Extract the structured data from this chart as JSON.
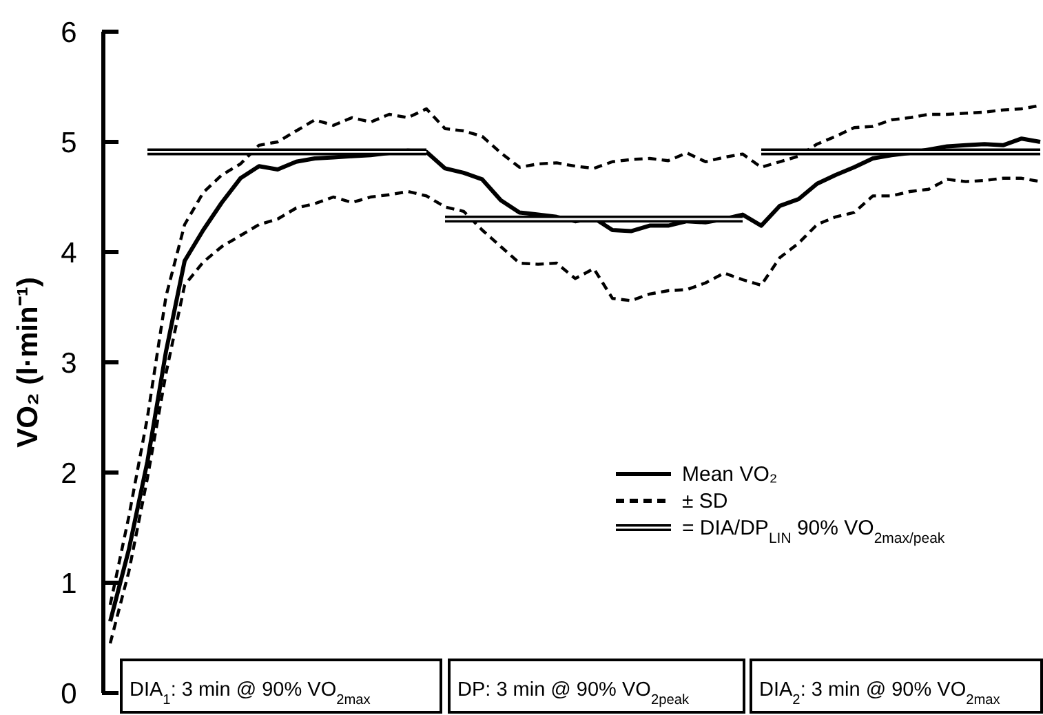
{
  "chart_data": {
    "type": "line",
    "ylabel": "VO₂ (l·min⁻¹)",
    "ylim": [
      0,
      6
    ],
    "yticks": [
      0,
      1,
      2,
      3,
      4,
      5,
      6
    ],
    "tick_labels": "y",
    "grid": false,
    "legend": "bottom right",
    "marker": "none",
    "categories": [
      null,
      null,
      null,
      null,
      null,
      null,
      null,
      null,
      null,
      null,
      null,
      null,
      null,
      null,
      null,
      null,
      null,
      null,
      null,
      null,
      null,
      null,
      null,
      null,
      null,
      null,
      null,
      null,
      null,
      null,
      null,
      null,
      null,
      null,
      null,
      null,
      null,
      null,
      null,
      null,
      null,
      null,
      null,
      null,
      null,
      null,
      null,
      null,
      null,
      null,
      null
    ],
    "annotations": [
      "DIA$_{1}$: 3 min @ 90% VO$_{2max}$",
      "DP: 3 min @ 90% VO$_{2peak}$",
      "DIA$_{2}$: 3 min @ 90% VO$_{2max}$"
    ],
    "series": [
      {
        "name": "Mean VO₂",
        "color": "#000000",
        "line_style": "solid",
        "values": [
          0.65,
          1.3,
          2.1,
          3.1,
          3.92,
          4.2,
          4.45,
          4.67,
          4.78,
          4.75,
          4.82,
          4.85,
          4.86,
          4.87,
          4.88,
          4.9,
          4.92,
          4.91,
          4.76,
          4.72,
          4.66,
          4.47,
          4.36,
          4.34,
          4.32,
          4.28,
          4.31,
          4.2,
          4.19,
          4.24,
          4.24,
          4.28,
          4.27,
          4.3,
          4.34,
          4.24,
          4.42,
          4.48,
          4.62,
          4.7,
          4.77,
          4.85,
          4.88,
          4.9,
          4.93,
          4.96,
          4.97,
          4.98,
          4.97,
          5.03,
          5.0
        ]
      },
      {
        "name": "± SD",
        "color": "#000000",
        "line_style": "dashed",
        "values": [
          0.8,
          1.6,
          2.5,
          3.6,
          4.25,
          4.54,
          4.7,
          4.8,
          4.97,
          5.0,
          5.1,
          5.2,
          5.15,
          5.22,
          5.18,
          5.25,
          5.22,
          5.3,
          5.12,
          5.1,
          5.05,
          4.9,
          4.77,
          4.8,
          4.81,
          4.78,
          4.76,
          4.82,
          4.84,
          4.85,
          4.83,
          4.9,
          4.82,
          4.86,
          4.89,
          4.77,
          4.82,
          4.87,
          4.98,
          5.05,
          5.13,
          5.14,
          5.2,
          5.22,
          5.25,
          5.25,
          5.26,
          5.27,
          5.29,
          5.3,
          5.33
        ]
      },
      {
        "color": "#000000",
        "line_style": "dashed",
        "values": [
          0.45,
          1.1,
          1.95,
          2.9,
          3.7,
          3.91,
          4.05,
          4.15,
          4.25,
          4.3,
          4.4,
          4.44,
          4.5,
          4.45,
          4.5,
          4.52,
          4.55,
          4.51,
          4.41,
          4.37,
          4.2,
          4.05,
          3.9,
          3.89,
          3.9,
          3.76,
          3.85,
          3.58,
          3.56,
          3.62,
          3.65,
          3.66,
          3.72,
          3.81,
          3.75,
          3.7,
          3.95,
          4.08,
          4.25,
          4.32,
          4.36,
          4.51,
          4.51,
          4.55,
          4.57,
          4.66,
          4.64,
          4.65,
          4.67,
          4.67,
          4.64
        ]
      },
      {
        "name": "= DIA/DP$_{LIN}$ 90% VO$_{2max/peak}$",
        "color": "#000000",
        "values": [
          null,
          null,
          4.91,
          4.91,
          4.91,
          4.91,
          4.91,
          4.91,
          4.91,
          4.91,
          4.91,
          4.91,
          4.91,
          4.91,
          4.91,
          4.91,
          4.91,
          4.91,
          null,
          null,
          null,
          null,
          null,
          null,
          null,
          null,
          null,
          null,
          null,
          null,
          null,
          null,
          null,
          null,
          null,
          null,
          null,
          null,
          null,
          null,
          null,
          null,
          null,
          null,
          null,
          null,
          null,
          null,
          null,
          null,
          null
        ]
      },
      {
        "color": "#000000",
        "values": [
          null,
          null,
          null,
          null,
          null,
          null,
          null,
          null,
          null,
          null,
          null,
          null,
          null,
          null,
          null,
          null,
          null,
          null,
          4.3,
          4.3,
          4.3,
          4.3,
          4.3,
          4.3,
          4.3,
          4.3,
          4.3,
          4.3,
          4.3,
          4.3,
          4.3,
          4.3,
          4.3,
          4.3,
          4.3,
          null,
          null,
          null,
          null,
          null,
          null,
          null,
          null,
          null,
          null,
          null,
          null,
          null,
          null,
          null,
          null
        ]
      },
      {
        "color": "#000000",
        "values": [
          null,
          null,
          null,
          null,
          null,
          null,
          null,
          null,
          null,
          null,
          null,
          null,
          null,
          null,
          null,
          null,
          null,
          null,
          null,
          null,
          null,
          null,
          null,
          null,
          null,
          null,
          null,
          null,
          null,
          null,
          null,
          null,
          null,
          null,
          null,
          4.91,
          4.91,
          4.91,
          4.91,
          4.91,
          4.91,
          4.91,
          4.91,
          4.91,
          4.91,
          4.91,
          4.91,
          4.91,
          4.91,
          4.91,
          4.91
        ]
      }
    ]
  }
}
